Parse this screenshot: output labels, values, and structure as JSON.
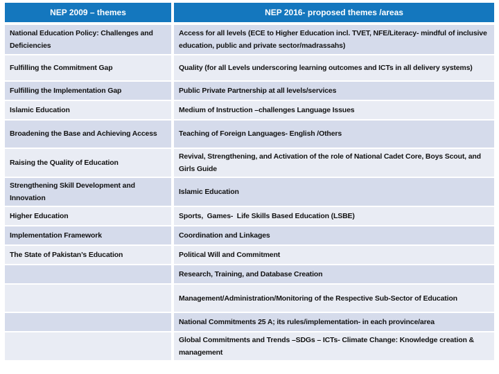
{
  "colors": {
    "header-bg": "#1477be",
    "header-text": "#ffffff",
    "band-dark": "#d5dbeb",
    "band-light": "#e9ecf4",
    "text": "#121212"
  },
  "table": {
    "headers": [
      {
        "label": "NEP 2009 – themes"
      },
      {
        "label": "NEP 2016- proposed themes /areas"
      }
    ],
    "rows": [
      {
        "left": "National Education Policy: Challenges and Deficiencies",
        "right": "Access for all levels (ECE to Higher Education incl. TVET, NFE/Literacy- mindful of inclusive education, public and private sector/madrassahs)"
      },
      {
        "left": "Fulfilling the Commitment Gap",
        "right": "Quality (for all Levels underscoring learning outcomes and ICTs in all delivery systems)"
      },
      {
        "left": "Fulfilling the Implementation Gap",
        "right": "Public Private Partnership at all levels/services"
      },
      {
        "left": "Islamic Education",
        "right": "Medium of Instruction –challenges Language Issues"
      },
      {
        "left": "Broadening the Base and Achieving Access",
        "right": "Teaching of Foreign Languages- English /Others"
      },
      {
        "left": "Raising the Quality of Education",
        "right": "Revival, Strengthening, and Activation of the role of National Cadet Core, Boys Scout, and Girls Guide"
      },
      {
        "left": "Strengthening Skill Development and Innovation",
        "right": "Islamic Education"
      },
      {
        "left": "Higher Education",
        "right": "Sports,  Games-  Life Skills Based Education (LSBE)"
      },
      {
        "left": "Implementation Framework",
        "right": "Coordination and Linkages"
      },
      {
        "left": "The State of Pakistan’s Education",
        "right": "Political Will and Commitment"
      },
      {
        "left": "",
        "right": "Research, Training, and Database Creation"
      },
      {
        "left": "",
        "right": "Management/Administration/Monitoring of the Respective Sub-Sector of Education"
      },
      {
        "left": "",
        "right": "National Commitments 25 A; its rules/implementation- in each province/area"
      },
      {
        "left": "",
        "right": "Global Commitments and Trends –SDGs – ICTs- Climate Change: Knowledge creation & management"
      }
    ]
  }
}
